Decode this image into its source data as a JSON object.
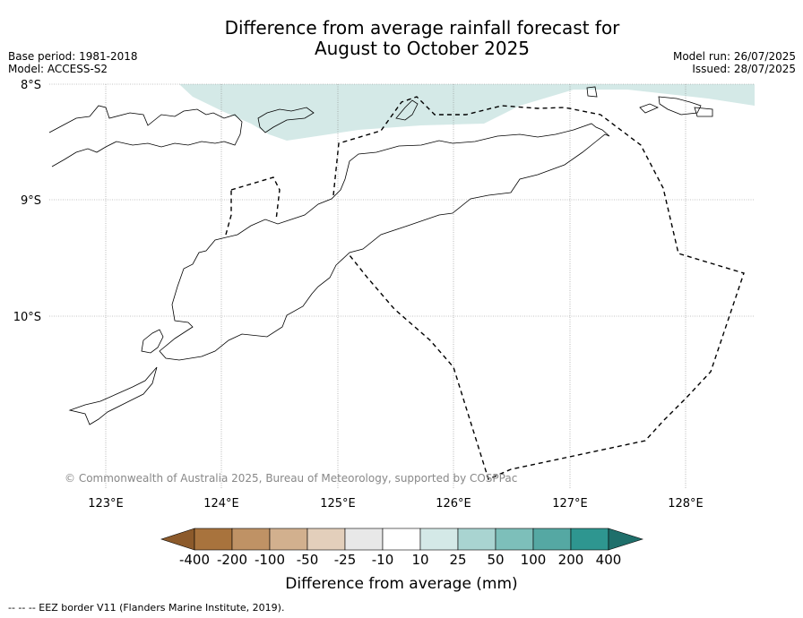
{
  "title_line1": "Difference from average rainfall forecast for",
  "title_line2": "August to October 2025",
  "base_period": "Base period: 1981-2018",
  "model": "Model: ACCESS-S2",
  "model_run": "Model run: 26/07/2025",
  "issued": "Issued: 28/07/2025",
  "copyright": "© Commonwealth of Australia 2025, Bureau of Meteorology, supported by COSPPac",
  "lat_labels": [
    "8°S",
    "9°S",
    "10°S"
  ],
  "lon_labels": [
    "123°E",
    "124°E",
    "125°E",
    "126°E",
    "127°E",
    "128°E"
  ],
  "legend": {
    "title": "Difference from average (mm)",
    "ticks": [
      "-400",
      "-200",
      "-100",
      "-50",
      "-25",
      "-10",
      "10",
      "25",
      "50",
      "100",
      "200",
      "400"
    ],
    "colors": [
      "#8c5a2b",
      "#a8733d",
      "#bf9265",
      "#d2b08e",
      "#e3cfbb",
      "#e8e8e8",
      "#ffffff",
      "#d4e9e7",
      "#a9d4d1",
      "#7dbfba",
      "#55a8a3",
      "#2e9690",
      "#1f6f6b"
    ]
  },
  "map_regions": [
    {
      "name": "north-band",
      "category": "10 to 25",
      "color": "#d4e9e7"
    }
  ],
  "footnote": "--  --  -- EEZ border V11 (Flanders Marine Institute, 2019)."
}
